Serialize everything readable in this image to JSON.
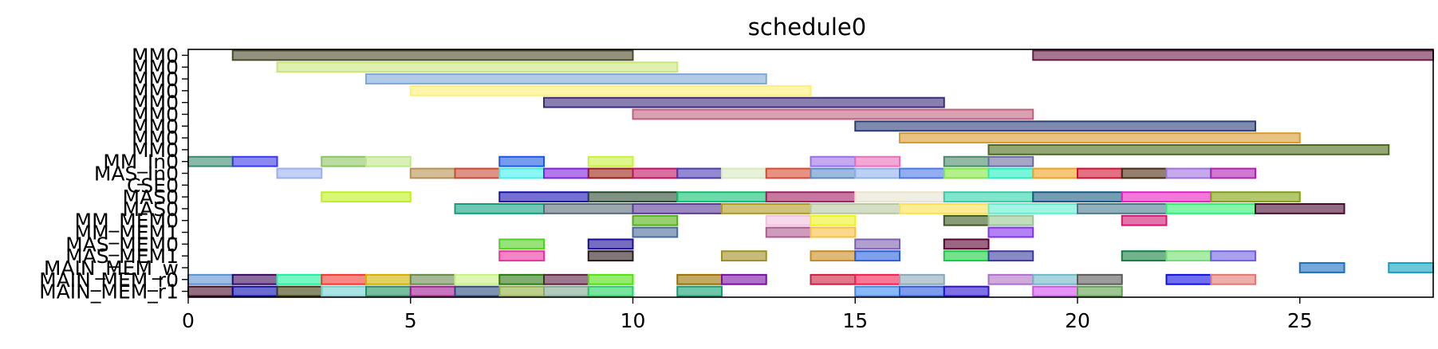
{
  "chart_data": {
    "type": "gantt",
    "title": "schedule0",
    "xlabel": "",
    "ylabel": "",
    "xlim": [
      0,
      28
    ],
    "x_ticks": [
      0,
      5,
      10,
      15,
      20,
      25
    ],
    "x_tick_labels": [
      "0",
      "5",
      "10",
      "15",
      "20",
      "25"
    ],
    "rows": [
      "MM0",
      "MM0",
      "MM0",
      "MM0",
      "MM0",
      "MM0",
      "MM0",
      "MM0",
      "MM0",
      "MM_In0",
      "MAS_In0",
      "CSE0",
      "MAS0",
      "MAS0",
      "MM_MEM0",
      "MM_MEM1",
      "MAS_MEM0",
      "MAS_MEM1",
      "MAIN_MEM_w",
      "MAIN_MEM_r0",
      "MAIN_MEM_r1"
    ],
    "bars": [
      {
        "row": 0,
        "start": 1,
        "end": 10,
        "color": "#4a4a2a"
      },
      {
        "row": 0,
        "start": 19,
        "end": 28,
        "color": "#6b1a45"
      },
      {
        "row": 1,
        "start": 2,
        "end": 11,
        "color": "#c9e67a"
      },
      {
        "row": 2,
        "start": 4,
        "end": 13,
        "color": "#7fa8d8"
      },
      {
        "row": 3,
        "start": 5,
        "end": 14,
        "color": "#ffee77"
      },
      {
        "row": 4,
        "start": 8,
        "end": 17,
        "color": "#3a2a7a"
      },
      {
        "row": 5,
        "start": 10,
        "end": 19,
        "color": "#c0607e"
      },
      {
        "row": 6,
        "start": 15,
        "end": 24,
        "color": "#2a3e78"
      },
      {
        "row": 7,
        "start": 16,
        "end": 25,
        "color": "#d99a30"
      },
      {
        "row": 8,
        "start": 18,
        "end": 27,
        "color": "#4a6a1a"
      },
      {
        "row": 9,
        "start": 0,
        "end": 1,
        "color": "#3a8a70"
      },
      {
        "row": 9,
        "start": 1,
        "end": 2,
        "color": "#3a3ae8"
      },
      {
        "row": 9,
        "start": 3,
        "end": 4,
        "color": "#8cc460"
      },
      {
        "row": 9,
        "start": 4,
        "end": 5,
        "color": "#bfe88a"
      },
      {
        "row": 9,
        "start": 7,
        "end": 8,
        "color": "#1a5ae0"
      },
      {
        "row": 9,
        "start": 9,
        "end": 10,
        "color": "#c8f040"
      },
      {
        "row": 9,
        "start": 14,
        "end": 15,
        "color": "#9a70e8"
      },
      {
        "row": 9,
        "start": 15,
        "end": 16,
        "color": "#e870b8"
      },
      {
        "row": 9,
        "start": 17,
        "end": 18,
        "color": "#4a8a6a"
      },
      {
        "row": 9,
        "start": 18,
        "end": 19,
        "color": "#6a6aa0"
      },
      {
        "row": 10,
        "start": 2,
        "end": 3,
        "color": "#9ab0f0"
      },
      {
        "row": 10,
        "start": 5,
        "end": 6,
        "color": "#b89050"
      },
      {
        "row": 10,
        "start": 6,
        "end": 7,
        "color": "#c84a30"
      },
      {
        "row": 10,
        "start": 7,
        "end": 8,
        "color": "#40f0f0"
      },
      {
        "row": 10,
        "start": 8,
        "end": 9,
        "color": "#8020e0"
      },
      {
        "row": 10,
        "start": 9,
        "end": 10,
        "color": "#982010"
      },
      {
        "row": 10,
        "start": 10,
        "end": 11,
        "color": "#c01060"
      },
      {
        "row": 10,
        "start": 11,
        "end": 12,
        "color": "#4a3ab0"
      },
      {
        "row": 10,
        "start": 12,
        "end": 13,
        "color": "#d8e8c0"
      },
      {
        "row": 10,
        "start": 13,
        "end": 14,
        "color": "#d84a30"
      },
      {
        "row": 10,
        "start": 14,
        "end": 15,
        "color": "#5a8ac8"
      },
      {
        "row": 10,
        "start": 15,
        "end": 16,
        "color": "#90b0f0"
      },
      {
        "row": 10,
        "start": 16,
        "end": 17,
        "color": "#4a78e8"
      },
      {
        "row": 10,
        "start": 17,
        "end": 18,
        "color": "#80e840"
      },
      {
        "row": 10,
        "start": 18,
        "end": 19,
        "color": "#20f0c0"
      },
      {
        "row": 10,
        "start": 19,
        "end": 20,
        "color": "#f0a020"
      },
      {
        "row": 10,
        "start": 20,
        "end": 21,
        "color": "#d01030"
      },
      {
        "row": 10,
        "start": 21,
        "end": 22,
        "color": "#4a2a10"
      },
      {
        "row": 10,
        "start": 22,
        "end": 23,
        "color": "#a070e0"
      },
      {
        "row": 10,
        "start": 23,
        "end": 24,
        "color": "#b020b0"
      },
      {
        "row": 12,
        "start": 3,
        "end": 5,
        "color": "#c0f020"
      },
      {
        "row": 12,
        "start": 7,
        "end": 9,
        "color": "#1a10b0"
      },
      {
        "row": 12,
        "start": 9,
        "end": 11,
        "color": "#2a4a30"
      },
      {
        "row": 12,
        "start": 11,
        "end": 13,
        "color": "#10c070"
      },
      {
        "row": 12,
        "start": 13,
        "end": 15,
        "color": "#a02060"
      },
      {
        "row": 12,
        "start": 15,
        "end": 17,
        "color": "#e8e4d0"
      },
      {
        "row": 12,
        "start": 17,
        "end": 19,
        "color": "#30d0a8"
      },
      {
        "row": 12,
        "start": 19,
        "end": 21,
        "color": "#1a5a80"
      },
      {
        "row": 12,
        "start": 21,
        "end": 23,
        "color": "#e820c0"
      },
      {
        "row": 12,
        "start": 23,
        "end": 25,
        "color": "#80a010"
      },
      {
        "row": 13,
        "start": 6,
        "end": 8,
        "color": "#10a080"
      },
      {
        "row": 13,
        "start": 8,
        "end": 10,
        "color": "#5a6a78"
      },
      {
        "row": 13,
        "start": 10,
        "end": 12,
        "color": "#5a3a9a"
      },
      {
        "row": 13,
        "start": 12,
        "end": 14,
        "color": "#b09a20"
      },
      {
        "row": 13,
        "start": 14,
        "end": 16,
        "color": "#b8c8a0"
      },
      {
        "row": 13,
        "start": 16,
        "end": 18,
        "color": "#ffe050"
      },
      {
        "row": 13,
        "start": 18,
        "end": 20,
        "color": "#60f0d0"
      },
      {
        "row": 13,
        "start": 20,
        "end": 22,
        "color": "#4a7a90"
      },
      {
        "row": 13,
        "start": 22,
        "end": 24,
        "color": "#30f070"
      },
      {
        "row": 13,
        "start": 24,
        "end": 26,
        "color": "#4a0a30"
      },
      {
        "row": 14,
        "start": 10,
        "end": 11,
        "color": "#50b010"
      },
      {
        "row": 14,
        "start": 13,
        "end": 14,
        "color": "#f0c0e0"
      },
      {
        "row": 14,
        "start": 14,
        "end": 15,
        "color": "#f0f020"
      },
      {
        "row": 14,
        "start": 17,
        "end": 18,
        "color": "#3a5a20"
      },
      {
        "row": 14,
        "start": 18,
        "end": 19,
        "color": "#98c890"
      },
      {
        "row": 14,
        "start": 21,
        "end": 22,
        "color": "#d01870"
      },
      {
        "row": 15,
        "start": 10,
        "end": 11,
        "color": "#4a6a98"
      },
      {
        "row": 15,
        "start": 13,
        "end": 14,
        "color": "#b05a90"
      },
      {
        "row": 15,
        "start": 14,
        "end": 15,
        "color": "#f8c040"
      },
      {
        "row": 15,
        "start": 18,
        "end": 19,
        "color": "#8030f0"
      },
      {
        "row": 16,
        "start": 7,
        "end": 8,
        "color": "#50d020"
      },
      {
        "row": 16,
        "start": 9,
        "end": 10,
        "color": "#1a0a9a"
      },
      {
        "row": 16,
        "start": 15,
        "end": 16,
        "color": "#7a60b0"
      },
      {
        "row": 16,
        "start": 17,
        "end": 18,
        "color": "#5a0030"
      },
      {
        "row": 17,
        "start": 7,
        "end": 8,
        "color": "#f030a0"
      },
      {
        "row": 17,
        "start": 9,
        "end": 10,
        "color": "#2a1a1a"
      },
      {
        "row": 17,
        "start": 12,
        "end": 13,
        "color": "#a09020"
      },
      {
        "row": 17,
        "start": 14,
        "end": 15,
        "color": "#c88a20"
      },
      {
        "row": 17,
        "start": 15,
        "end": 16,
        "color": "#2a60e0"
      },
      {
        "row": 17,
        "start": 17,
        "end": 18,
        "color": "#10d040"
      },
      {
        "row": 17,
        "start": 18,
        "end": 19,
        "color": "#3a3aa0"
      },
      {
        "row": 17,
        "start": 21,
        "end": 22,
        "color": "#108040"
      },
      {
        "row": 17,
        "start": 22,
        "end": 23,
        "color": "#70e070"
      },
      {
        "row": 17,
        "start": 23,
        "end": 24,
        "color": "#7060e8"
      },
      {
        "row": 18,
        "start": 25,
        "end": 26,
        "color": "#1a70c0"
      },
      {
        "row": 18,
        "start": 27,
        "end": 28,
        "color": "#10a0c0"
      },
      {
        "row": 19,
        "start": 0,
        "end": 1,
        "color": "#5a90d0"
      },
      {
        "row": 19,
        "start": 1,
        "end": 2,
        "color": "#3a0a5a"
      },
      {
        "row": 19,
        "start": 2,
        "end": 3,
        "color": "#20f0a0"
      },
      {
        "row": 19,
        "start": 3,
        "end": 4,
        "color": "#f03a30"
      },
      {
        "row": 19,
        "start": 4,
        "end": 5,
        "color": "#d0b000"
      },
      {
        "row": 19,
        "start": 5,
        "end": 6,
        "color": "#6a8a50"
      },
      {
        "row": 19,
        "start": 6,
        "end": 7,
        "color": "#c8f080"
      },
      {
        "row": 19,
        "start": 7,
        "end": 8,
        "color": "#2a7a10"
      },
      {
        "row": 19,
        "start": 8,
        "end": 9,
        "color": "#5a2040"
      },
      {
        "row": 19,
        "start": 9,
        "end": 10,
        "color": "#50e010"
      },
      {
        "row": 19,
        "start": 11,
        "end": 12,
        "color": "#9a7000"
      },
      {
        "row": 19,
        "start": 12,
        "end": 13,
        "color": "#7a10a0"
      },
      {
        "row": 19,
        "start": 14,
        "end": 15,
        "color": "#c82040"
      },
      {
        "row": 19,
        "start": 15,
        "end": 16,
        "color": "#f02050"
      },
      {
        "row": 19,
        "start": 16,
        "end": 17,
        "color": "#8aa8b8"
      },
      {
        "row": 19,
        "start": 18,
        "end": 19,
        "color": "#b070c8"
      },
      {
        "row": 19,
        "start": 19,
        "end": 20,
        "color": "#70b8c8"
      },
      {
        "row": 19,
        "start": 20,
        "end": 21,
        "color": "#5a5a5a"
      },
      {
        "row": 19,
        "start": 22,
        "end": 23,
        "color": "#1010e0"
      },
      {
        "row": 19,
        "start": 23,
        "end": 24,
        "color": "#e07a70"
      },
      {
        "row": 20,
        "start": 0,
        "end": 1,
        "color": "#4a0a2a"
      },
      {
        "row": 20,
        "start": 1,
        "end": 2,
        "color": "#0a0ab0"
      },
      {
        "row": 20,
        "start": 2,
        "end": 3,
        "color": "#3a3a0a"
      },
      {
        "row": 20,
        "start": 3,
        "end": 4,
        "color": "#70d0d0"
      },
      {
        "row": 20,
        "start": 4,
        "end": 5,
        "color": "#209060"
      },
      {
        "row": 20,
        "start": 5,
        "end": 6,
        "color": "#a01a90"
      },
      {
        "row": 20,
        "start": 6,
        "end": 7,
        "color": "#2a4a7a"
      },
      {
        "row": 20,
        "start": 7,
        "end": 8,
        "color": "#90b040"
      },
      {
        "row": 20,
        "start": 8,
        "end": 9,
        "color": "#80a890"
      },
      {
        "row": 20,
        "start": 9,
        "end": 10,
        "color": "#20d060"
      },
      {
        "row": 20,
        "start": 11,
        "end": 12,
        "color": "#10a070"
      },
      {
        "row": 20,
        "start": 15,
        "end": 16,
        "color": "#3a8af0"
      },
      {
        "row": 20,
        "start": 16,
        "end": 17,
        "color": "#2a5ae0"
      },
      {
        "row": 20,
        "start": 17,
        "end": 18,
        "color": "#2a10d0"
      },
      {
        "row": 20,
        "start": 19,
        "end": 20,
        "color": "#d050f0"
      },
      {
        "row": 20,
        "start": 20,
        "end": 21,
        "color": "#60a050"
      }
    ],
    "bar_alpha": 0.6,
    "grid": false,
    "legend": "none"
  }
}
